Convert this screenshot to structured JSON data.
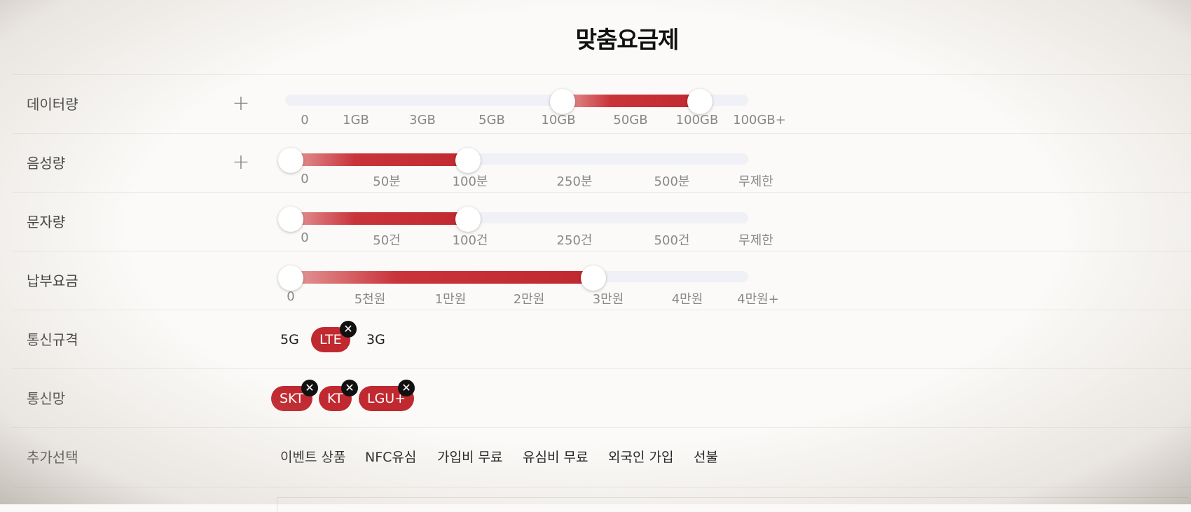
{
  "title": "맞춤요금제",
  "rows": {
    "data": {
      "label": "데이터량",
      "ticks": [
        "0",
        "1GB",
        "3GB",
        "5GB",
        "10GB",
        "50GB",
        "100GB",
        "100GB+"
      ]
    },
    "voice": {
      "label": "음성량",
      "ticks": [
        "0",
        "50분",
        "100분",
        "250분",
        "500분",
        "무제한"
      ]
    },
    "sms": {
      "label": "문자량",
      "ticks": [
        "0",
        "50건",
        "100건",
        "250건",
        "500건",
        "무제한"
      ]
    },
    "fee": {
      "label": "납부요금",
      "ticks": [
        "0",
        "5천원",
        "1만원",
        "2만원",
        "3만원",
        "4만원",
        "4만원+"
      ]
    },
    "spec": {
      "label": "통신규격",
      "options": [
        "5G",
        "LTE",
        "3G"
      ],
      "selected": "LTE"
    },
    "network": {
      "label": "통신망",
      "chips": [
        "SKT",
        "KT",
        "LGU+"
      ]
    },
    "extra": {
      "label": "추가선택",
      "options": [
        "이벤트 상품",
        "NFC유심",
        "가입비 무료",
        "유심비 무료",
        "외국인 가입",
        "선불"
      ]
    }
  },
  "icons": {
    "plus": "plus-icon",
    "remove": "close-icon"
  },
  "colors": {
    "accent": "#c0292f",
    "track": "#f0f0f7",
    "chip_close": "#111111"
  }
}
